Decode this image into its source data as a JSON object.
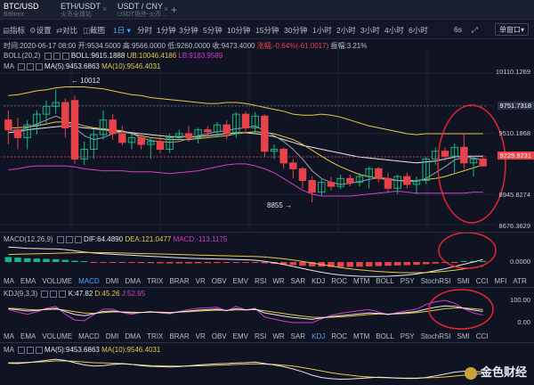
{
  "tabs": [
    {
      "pair": "BTC/USD",
      "exchange": "Bitfinex",
      "active": true
    },
    {
      "pair": "ETH/USDT",
      "exchange": "火币全球站",
      "active": false
    },
    {
      "pair": "USDT / CNY",
      "exchange": "USDT场外-火币…",
      "active": false
    }
  ],
  "tab_add": "+",
  "toolbar": {
    "tools": [
      "指标",
      "设置",
      "对比",
      "截图"
    ],
    "timeframes": [
      "1日",
      "分时",
      "1分钟",
      "3分钟",
      "5分钟",
      "10分钟",
      "15分钟",
      "30分钟",
      "1小时",
      "2小时",
      "3小时",
      "4小时",
      "6小时"
    ],
    "selected_timeframe": "1日",
    "seconds": "6s",
    "window_label": "单窗口"
  },
  "info": {
    "time": "时间:2020-06-17 08:00",
    "open": "开:9534.5000",
    "high": "高:9566.0000",
    "low": "低:9260.0000",
    "close": "收:9473.4000",
    "change": "涨幅:-0.64%(-61.0017)",
    "amplitude": "振幅:3.21%"
  },
  "boll_legend": {
    "name": "BOLL(20,2)",
    "mid": "BOLL:9615.1888",
    "ub": "UB:10046.4186",
    "lb": "LB:9183.9589"
  },
  "ma_legend": {
    "name": "MA",
    "ma5": "MA(5):9453.6863",
    "ma10": "MA(10):9546.4031"
  },
  "price_axis": [
    "10110.1269",
    "9751.7318",
    "9510.1868",
    "9229.9231",
    "8945.8274",
    "8676.3629"
  ],
  "current_price": "9229.9231",
  "crosshair_price": "9751.7318",
  "high_marker": "10012",
  "low_marker": "8855",
  "macd_legend": {
    "name": "MACD(12,26,9)",
    "dif": "DIF:64.4890",
    "dea": "DEA:121.0477",
    "macd": "MACD:-113.1175"
  },
  "macd_axis": [
    "0.0000"
  ],
  "kdj_legend": {
    "name": "KDJ(9,3,3)",
    "k": "K:47.82",
    "d": "D:45.26",
    "j": "J:52.95"
  },
  "kdj_axis": [
    "100.00",
    "0.00"
  ],
  "indicator_tabs": [
    "MA",
    "EMA",
    "VOLUME",
    "MACD",
    "DMI",
    "DMA",
    "TRIX",
    "BRAR",
    "VR",
    "OBV",
    "EMV",
    "RSI",
    "WR",
    "SAR",
    "KDJ",
    "ROC",
    "MTM",
    "BOLL",
    "PSY",
    "StochRSI",
    "SMI",
    "CCI",
    "MFI",
    "ATR"
  ],
  "indicator_tabs2": [
    "MA",
    "EMA",
    "VOLUME",
    "MACD",
    "DMI",
    "DMA",
    "TRIX",
    "BRAR",
    "VR",
    "OBV",
    "EMV",
    "RSI",
    "WR",
    "SAR",
    "KDJ",
    "ROC",
    "MTM",
    "BOLL",
    "PSY",
    "StochRSI",
    "SMI",
    "CCI"
  ],
  "bottom_ma_legend": {
    "name": "MA",
    "ma5": "MA(5):9453.6863",
    "ma10": "MA(10):9546.4031"
  },
  "watermark": "金色财经",
  "colors": {
    "up": "#13b886",
    "down": "#e8434b",
    "boll_mid": "#e8e8e8",
    "boll_ub": "#e7c84a",
    "boll_lb": "#d43ccd",
    "ma5": "#e8e8e8",
    "ma10": "#e7c84a",
    "accent": "#4aa3ff"
  },
  "chart_data": {
    "type": "candlestick",
    "ylim": [
      8600,
      10200
    ],
    "candles": [
      {
        "o": 9700,
        "h": 9800,
        "l": 9450,
        "c": 9600
      },
      {
        "o": 9600,
        "h": 9720,
        "l": 9400,
        "c": 9520
      },
      {
        "o": 9520,
        "h": 9700,
        "l": 9400,
        "c": 9650
      },
      {
        "o": 9650,
        "h": 9800,
        "l": 9550,
        "c": 9760
      },
      {
        "o": 9760,
        "h": 9900,
        "l": 9650,
        "c": 9840
      },
      {
        "o": 9840,
        "h": 10012,
        "l": 9760,
        "c": 9880
      },
      {
        "o": 9880,
        "h": 9920,
        "l": 9520,
        "c": 9620
      },
      {
        "o": 9900,
        "h": 9950,
        "l": 9250,
        "c": 9300
      },
      {
        "o": 9300,
        "h": 9480,
        "l": 9240,
        "c": 9400
      },
      {
        "o": 9400,
        "h": 9600,
        "l": 9300,
        "c": 9550
      },
      {
        "o": 9550,
        "h": 9800,
        "l": 9500,
        "c": 9700
      },
      {
        "o": 9700,
        "h": 9760,
        "l": 9500,
        "c": 9560
      },
      {
        "o": 9560,
        "h": 9640,
        "l": 9440,
        "c": 9470
      },
      {
        "o": 9470,
        "h": 9560,
        "l": 9400,
        "c": 9520
      },
      {
        "o": 9520,
        "h": 9560,
        "l": 9400,
        "c": 9450
      },
      {
        "o": 9450,
        "h": 9520,
        "l": 9300,
        "c": 9480
      },
      {
        "o": 9480,
        "h": 9530,
        "l": 9360,
        "c": 9400
      },
      {
        "o": 9400,
        "h": 9560,
        "l": 9360,
        "c": 9520
      },
      {
        "o": 9520,
        "h": 9600,
        "l": 9500,
        "c": 9560
      },
      {
        "o": 9560,
        "h": 9640,
        "l": 9480,
        "c": 9520
      },
      {
        "o": 9520,
        "h": 9620,
        "l": 9460,
        "c": 9600
      },
      {
        "o": 9600,
        "h": 9640,
        "l": 9520,
        "c": 9580
      },
      {
        "o": 9580,
        "h": 9680,
        "l": 9520,
        "c": 9650
      },
      {
        "o": 9650,
        "h": 9700,
        "l": 9500,
        "c": 9560
      },
      {
        "o": 9560,
        "h": 9780,
        "l": 9520,
        "c": 9760
      },
      {
        "o": 9760,
        "h": 9790,
        "l": 9560,
        "c": 9620
      },
      {
        "o": 9620,
        "h": 9780,
        "l": 9560,
        "c": 9740
      },
      {
        "o": 9740,
        "h": 9760,
        "l": 9320,
        "c": 9380
      },
      {
        "o": 9380,
        "h": 9450,
        "l": 9300,
        "c": 9400
      },
      {
        "o": 9400,
        "h": 9420,
        "l": 9200,
        "c": 9260
      },
      {
        "o": 9260,
        "h": 9300,
        "l": 9100,
        "c": 9200
      },
      {
        "o": 9200,
        "h": 9220,
        "l": 9000,
        "c": 9080
      },
      {
        "o": 9080,
        "h": 9120,
        "l": 8855,
        "c": 8960
      },
      {
        "o": 8960,
        "h": 9100,
        "l": 8920,
        "c": 9060
      },
      {
        "o": 9060,
        "h": 9120,
        "l": 8980,
        "c": 9020
      },
      {
        "o": 9020,
        "h": 9140,
        "l": 8990,
        "c": 9100
      },
      {
        "o": 9100,
        "h": 9140,
        "l": 9020,
        "c": 9060
      },
      {
        "o": 9060,
        "h": 9160,
        "l": 9020,
        "c": 9120
      },
      {
        "o": 9120,
        "h": 9220,
        "l": 9000,
        "c": 9200
      },
      {
        "o": 9200,
        "h": 9220,
        "l": 9060,
        "c": 9100
      },
      {
        "o": 9100,
        "h": 9160,
        "l": 8960,
        "c": 9000
      },
      {
        "o": 9000,
        "h": 9140,
        "l": 8940,
        "c": 9120
      },
      {
        "o": 9120,
        "h": 9160,
        "l": 9000,
        "c": 9040
      },
      {
        "o": 9040,
        "h": 9120,
        "l": 8940,
        "c": 9080
      },
      {
        "o": 9080,
        "h": 9320,
        "l": 9040,
        "c": 9300
      },
      {
        "o": 9300,
        "h": 9420,
        "l": 9240,
        "c": 9380
      },
      {
        "o": 9380,
        "h": 9420,
        "l": 9280,
        "c": 9330
      },
      {
        "o": 9330,
        "h": 9460,
        "l": 9150,
        "c": 9420
      },
      {
        "o": 9420,
        "h": 9560,
        "l": 9200,
        "c": 9260
      },
      {
        "o": 9260,
        "h": 9330,
        "l": 9120,
        "c": 9300
      },
      {
        "o": 9300,
        "h": 9340,
        "l": 9220,
        "c": 9230
      }
    ],
    "boll_ub": [
      9950,
      9960,
      9980,
      10000,
      10010,
      10030,
      10040,
      10040,
      10040,
      10030,
      10020,
      10000,
      9980,
      9960,
      9950,
      9930,
      9920,
      9910,
      9900,
      9890,
      9880,
      9870,
      9870,
      9880,
      9880,
      9870,
      9850,
      9830,
      9810,
      9790,
      9760,
      9750,
      9750,
      9760,
      9750,
      9730,
      9700,
      9670,
      9640,
      9620,
      9600,
      9580,
      9560,
      9550,
      9560,
      9560,
      9560,
      9560,
      9560,
      9560,
      9560
    ],
    "boll_mid": [
      9570,
      9580,
      9600,
      9610,
      9620,
      9630,
      9640,
      9630,
      9620,
      9610,
      9600,
      9590,
      9580,
      9570,
      9560,
      9550,
      9540,
      9530,
      9530,
      9530,
      9530,
      9540,
      9550,
      9560,
      9570,
      9570,
      9560,
      9550,
      9530,
      9500,
      9470,
      9440,
      9420,
      9400,
      9380,
      9360,
      9340,
      9320,
      9310,
      9300,
      9290,
      9280,
      9270,
      9260,
      9270,
      9280,
      9300,
      9320,
      9330,
      9330,
      9330
    ],
    "boll_lb": [
      9190,
      9200,
      9220,
      9230,
      9230,
      9230,
      9230,
      9220,
      9200,
      9190,
      9180,
      9180,
      9180,
      9170,
      9170,
      9170,
      9160,
      9150,
      9160,
      9170,
      9180,
      9200,
      9220,
      9240,
      9250,
      9250,
      9230,
      9200,
      9160,
      9100,
      9040,
      8980,
      8940,
      8920,
      8920,
      8920,
      8920,
      8930,
      8940,
      8950,
      8960,
      8970,
      8960,
      8950,
      8950,
      8950,
      8950,
      8950,
      8950,
      8960,
      8960
    ],
    "ma5": [
      9600,
      9590,
      9620,
      9660,
      9700,
      9740,
      9700,
      9620,
      9540,
      9500,
      9520,
      9560,
      9580,
      9560,
      9520,
      9490,
      9480,
      9470,
      9480,
      9510,
      9540,
      9560,
      9580,
      9590,
      9610,
      9620,
      9640,
      9590,
      9540,
      9480,
      9400,
      9300,
      9180,
      9100,
      9060,
      9040,
      9050,
      9070,
      9090,
      9110,
      9100,
      9080,
      9070,
      9070,
      9100,
      9160,
      9220,
      9290,
      9320,
      9310,
      9290
    ],
    "ma10": [
      9620,
      9620,
      9630,
      9640,
      9660,
      9680,
      9680,
      9670,
      9640,
      9620,
      9610,
      9600,
      9590,
      9560,
      9540,
      9520,
      9510,
      9500,
      9500,
      9500,
      9510,
      9520,
      9530,
      9540,
      9560,
      9570,
      9580,
      9570,
      9560,
      9530,
      9500,
      9450,
      9390,
      9330,
      9270,
      9220,
      9180,
      9140,
      9120,
      9100,
      9090,
      9080,
      9080,
      9080,
      9090,
      9100,
      9120,
      9150,
      9180,
      9210,
      9240
    ],
    "macd_hist": [
      80,
      70,
      60,
      55,
      50,
      45,
      35,
      20,
      5,
      -5,
      -10,
      -12,
      -14,
      -15,
      -16,
      -18,
      -20,
      -22,
      -22,
      -22,
      -20,
      -18,
      -16,
      -14,
      -12,
      -10,
      -12,
      -20,
      -30,
      -40,
      -50,
      -60,
      -70,
      -75,
      -78,
      -80,
      -78,
      -75,
      -70,
      -65,
      -60,
      -55,
      -50,
      -45,
      -35,
      -25,
      -15,
      -5,
      5,
      10,
      12
    ],
    "dif": [
      120,
      115,
      110,
      108,
      106,
      105,
      100,
      90,
      80,
      72,
      66,
      62,
      58,
      54,
      50,
      46,
      42,
      38,
      34,
      30,
      28,
      26,
      24,
      22,
      20,
      18,
      14,
      6,
      -6,
      -20,
      -36,
      -52,
      -68,
      -82,
      -94,
      -104,
      -110,
      -114,
      -116,
      -116,
      -114,
      -110,
      -104,
      -96,
      -84,
      -70,
      -54,
      -36,
      -18,
      0,
      20
    ],
    "dea": [
      60,
      62,
      64,
      66,
      68,
      70,
      72,
      74,
      76,
      76,
      75,
      74,
      72,
      70,
      68,
      66,
      64,
      62,
      60,
      58,
      56,
      54,
      52,
      50,
      48,
      46,
      44,
      40,
      34,
      26,
      16,
      4,
      -8,
      -20,
      -32,
      -44,
      -54,
      -62,
      -70,
      -76,
      -80,
      -84,
      -86,
      -86,
      -84,
      -80,
      -74,
      -66,
      -56,
      -44,
      -32
    ],
    "kdj_k": [
      60,
      55,
      50,
      52,
      58,
      62,
      48,
      35,
      30,
      38,
      48,
      50,
      45,
      42,
      44,
      46,
      44,
      42,
      46,
      50,
      54,
      56,
      58,
      52,
      60,
      55,
      58,
      42,
      35,
      28,
      22,
      18,
      14,
      20,
      26,
      30,
      34,
      38,
      42,
      40,
      36,
      40,
      44,
      48,
      58,
      66,
      72,
      70,
      62,
      54,
      48
    ],
    "kdj_d": [
      62,
      60,
      57,
      55,
      56,
      58,
      54,
      47,
      41,
      40,
      43,
      46,
      46,
      45,
      44,
      45,
      45,
      44,
      45,
      47,
      50,
      52,
      54,
      53,
      55,
      55,
      56,
      51,
      45,
      39,
      33,
      28,
      23,
      22,
      23,
      25,
      28,
      31,
      35,
      37,
      37,
      38,
      40,
      43,
      48,
      54,
      60,
      63,
      63,
      60,
      56
    ],
    "kdj_j": [
      56,
      45,
      36,
      46,
      62,
      70,
      36,
      11,
      8,
      34,
      58,
      58,
      43,
      36,
      44,
      48,
      42,
      38,
      48,
      56,
      62,
      64,
      66,
      50,
      70,
      55,
      62,
      24,
      15,
      6,
      0,
      0,
      0,
      16,
      32,
      40,
      46,
      52,
      56,
      46,
      34,
      44,
      52,
      58,
      78,
      90,
      96,
      84,
      60,
      42,
      32
    ]
  }
}
